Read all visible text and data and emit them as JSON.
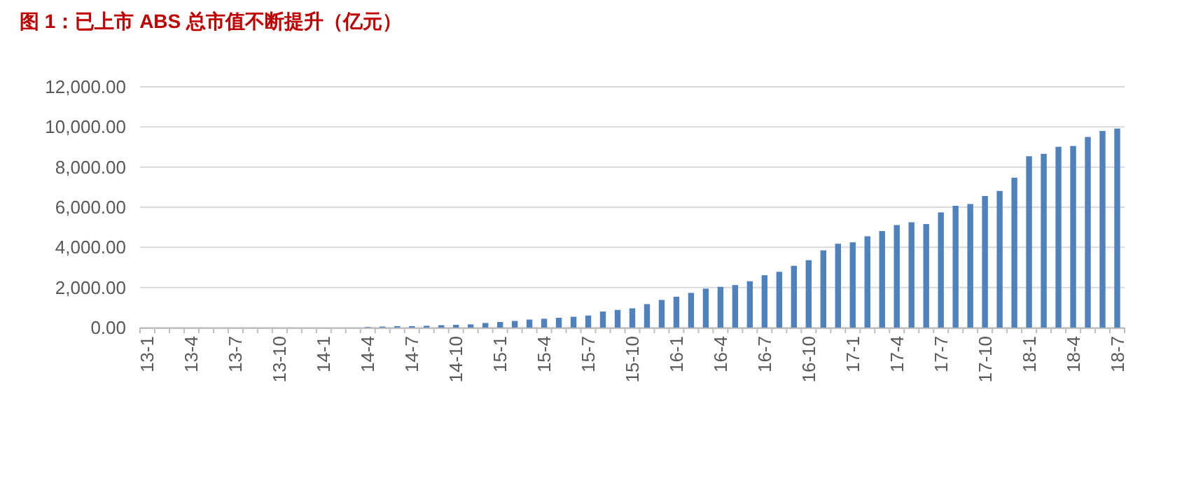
{
  "chart_data": {
    "type": "bar",
    "title": "图 1：已上市 ABS 总市值不断提升（亿元）",
    "categories": [
      "13-1",
      null,
      null,
      "13-4",
      null,
      null,
      "13-7",
      null,
      null,
      "13-10",
      null,
      null,
      "14-1",
      null,
      null,
      "14-4",
      null,
      null,
      "14-7",
      null,
      null,
      "14-10",
      null,
      null,
      "15-1",
      null,
      null,
      "15-4",
      null,
      null,
      "15-7",
      null,
      null,
      "15-10",
      null,
      null,
      "16-1",
      null,
      null,
      "16-4",
      null,
      null,
      "16-7",
      null,
      null,
      "16-10",
      null,
      null,
      "17-1",
      null,
      null,
      "17-4",
      null,
      null,
      "17-7",
      null,
      null,
      "17-10",
      null,
      null,
      "18-1",
      null,
      null,
      "18-4",
      null,
      null,
      "18-7"
    ],
    "values": [
      null,
      null,
      null,
      null,
      null,
      null,
      null,
      null,
      null,
      null,
      null,
      null,
      null,
      null,
      null,
      30,
      50,
      70,
      70,
      90,
      120,
      140,
      160,
      230,
      280,
      330,
      400,
      440,
      490,
      540,
      600,
      800,
      880,
      960,
      1170,
      1380,
      1540,
      1730,
      1940,
      2030,
      2120,
      2310,
      2610,
      2780,
      3080,
      3360,
      3850,
      4180,
      4250,
      4550,
      4810,
      5110,
      5250,
      5160,
      5740,
      6070,
      6160,
      6560,
      6810,
      7470,
      8540,
      8660,
      9010,
      9050,
      9500,
      9800,
      9920
    ],
    "color": "#4f81bd",
    "ylim": [
      0,
      12000
    ],
    "yticks": [
      {
        "value": 0,
        "label": "0.00"
      },
      {
        "value": 2000,
        "label": "2,000.00"
      },
      {
        "value": 4000,
        "label": "4,000.00"
      },
      {
        "value": 6000,
        "label": "6,000.00"
      },
      {
        "value": 8000,
        "label": "8,000.00"
      },
      {
        "value": 10000,
        "label": "10,000.00"
      },
      {
        "value": 12000,
        "label": "12,000.00"
      }
    ],
    "grid": "y"
  }
}
